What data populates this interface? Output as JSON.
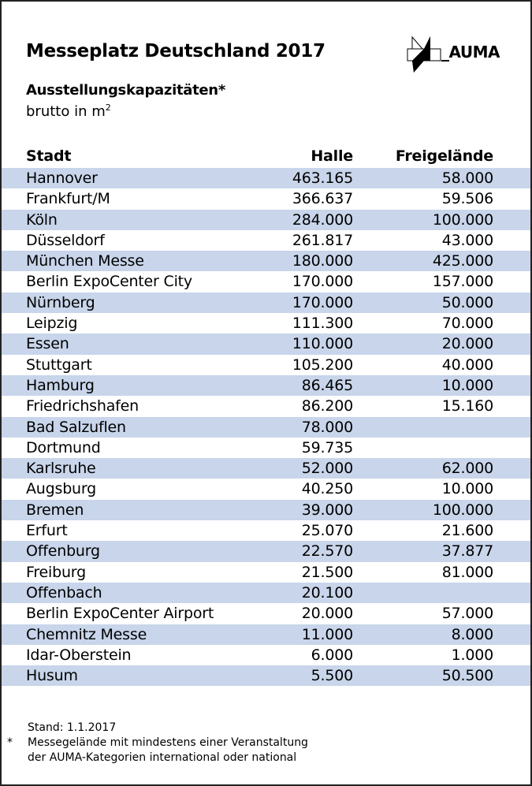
{
  "title": "Messeplatz Deutschland 2017",
  "subtitle": "Ausstellungskapazitäten*",
  "unit": "brutto in m",
  "unit_sup": "2",
  "logo": "_AUMA",
  "headers": {
    "city": "Stadt",
    "halle": "Halle",
    "frei": "Freigelände"
  },
  "rows": [
    [
      "Hannover",
      "463.165",
      "58.000"
    ],
    [
      "Frankfurt/M",
      "366.637",
      "59.506"
    ],
    [
      "Köln",
      "284.000",
      "100.000"
    ],
    [
      "Düsseldorf",
      "261.817",
      "43.000"
    ],
    [
      "München Messe",
      "180.000",
      "425.000"
    ],
    [
      "Berlin ExpoCenter City",
      "170.000",
      "157.000"
    ],
    [
      "Nürnberg",
      "170.000",
      "50.000"
    ],
    [
      "Leipzig",
      "111.300",
      "70.000"
    ],
    [
      "Essen",
      "110.000",
      "20.000"
    ],
    [
      "Stuttgart",
      "105.200",
      "40.000"
    ],
    [
      "Hamburg",
      "86.465",
      "10.000"
    ],
    [
      "Friedrichshafen",
      "86.200",
      "15.160"
    ],
    [
      "Bad Salzuflen",
      "78.000",
      ""
    ],
    [
      "Dortmund",
      "59.735",
      ""
    ],
    [
      "Karlsruhe",
      "52.000",
      "62.000"
    ],
    [
      "Augsburg",
      "40.250",
      "10.000"
    ],
    [
      "Bremen",
      "39.000",
      "100.000"
    ],
    [
      "Erfurt",
      "25.070",
      "21.600"
    ],
    [
      "Offenburg",
      "22.570",
      "37.877"
    ],
    [
      "Freiburg",
      "21.500",
      "81.000"
    ],
    [
      "Offenbach",
      "20.100",
      ""
    ],
    [
      "Berlin ExpoCenter Airport",
      "20.000",
      "57.000"
    ],
    [
      "Chemnitz Messe",
      "11.000",
      "8.000"
    ],
    [
      "Idar-Oberstein",
      "6.000",
      "1.000"
    ],
    [
      "Husum",
      "5.500",
      "50.500"
    ]
  ],
  "footer": {
    "stand": "Stand: 1.1.2017",
    "star": "*",
    "note1": "Messegelände mit mindestens einer Veranstaltung",
    "note2": "der AUMA-Kategorien international oder national"
  }
}
